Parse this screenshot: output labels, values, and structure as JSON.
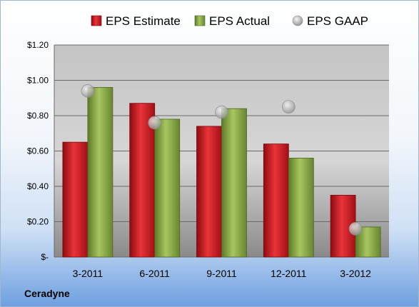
{
  "chart_data": {
    "type": "bar",
    "categories": [
      "3-2011",
      "6-2011",
      "9-2011",
      "12-2011",
      "3-2012"
    ],
    "series": [
      {
        "name": "EPS Estimate",
        "type": "bar",
        "color": "#c8141c",
        "values": [
          0.65,
          0.87,
          0.74,
          0.64,
          0.35
        ]
      },
      {
        "name": "EPS Actual",
        "type": "bar",
        "color": "#7a9a3a",
        "values": [
          0.96,
          0.78,
          0.84,
          0.56,
          0.17
        ]
      },
      {
        "name": "EPS GAAP",
        "type": "scatter",
        "color": "#b0b0b0",
        "values": [
          0.94,
          0.76,
          0.82,
          0.85,
          0.16
        ]
      }
    ],
    "ylim": [
      0,
      1.2
    ],
    "yticks": [
      0,
      0.2,
      0.4,
      0.6,
      0.8,
      1.0,
      1.2
    ],
    "ytick_labels": [
      "$-",
      "$0.20",
      "$0.40",
      "$0.60",
      "$0.80",
      "$1.00",
      "$1.20"
    ],
    "grid": true,
    "legend": "top"
  },
  "footer": {
    "company": "Ceradyne"
  }
}
